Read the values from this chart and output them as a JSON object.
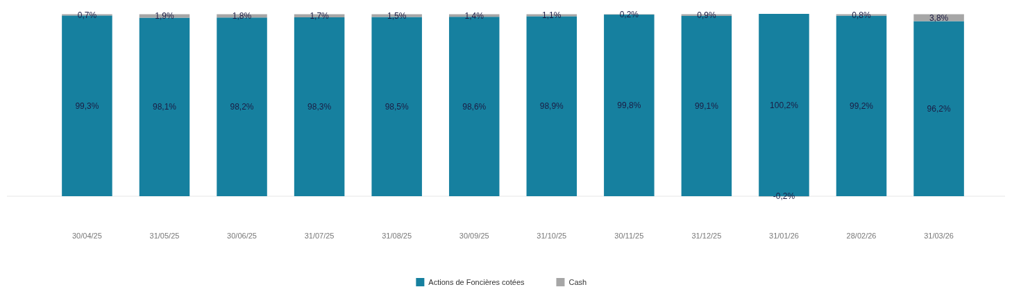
{
  "chart_data": {
    "type": "bar",
    "stacked": true,
    "legend": "bottom",
    "categories": [
      "30/04/25",
      "31/05/25",
      "30/06/25",
      "31/07/25",
      "31/08/25",
      "30/09/25",
      "31/10/25",
      "30/11/25",
      "31/12/25",
      "31/01/26",
      "28/02/26",
      "31/03/26"
    ],
    "series": [
      {
        "name": "Actions de Foncières cotées",
        "color": "#16809f",
        "values": [
          99.3,
          98.1,
          98.2,
          98.3,
          98.5,
          98.6,
          98.9,
          99.8,
          99.1,
          100.2,
          99.2,
          96.2
        ],
        "value_labels": [
          "99,3%",
          "98,1%",
          "98,2%",
          "98,3%",
          "98,5%",
          "98,6%",
          "98,9%",
          "99,8%",
          "99,1%",
          "100,2%",
          "99,2%",
          "96,2%"
        ]
      },
      {
        "name": "Cash",
        "color": "#a6a6a6",
        "values": [
          0.7,
          1.9,
          1.8,
          1.7,
          1.5,
          1.4,
          1.1,
          0.2,
          0.9,
          -0.2,
          0.8,
          3.8
        ],
        "value_labels": [
          "0,7%",
          "1,9%",
          "1,8%",
          "1,7%",
          "1,5%",
          "1,4%",
          "1,1%",
          "0,2%",
          "0,9%",
          "-0,2%",
          "0,8%",
          "3,8%"
        ]
      }
    ]
  }
}
